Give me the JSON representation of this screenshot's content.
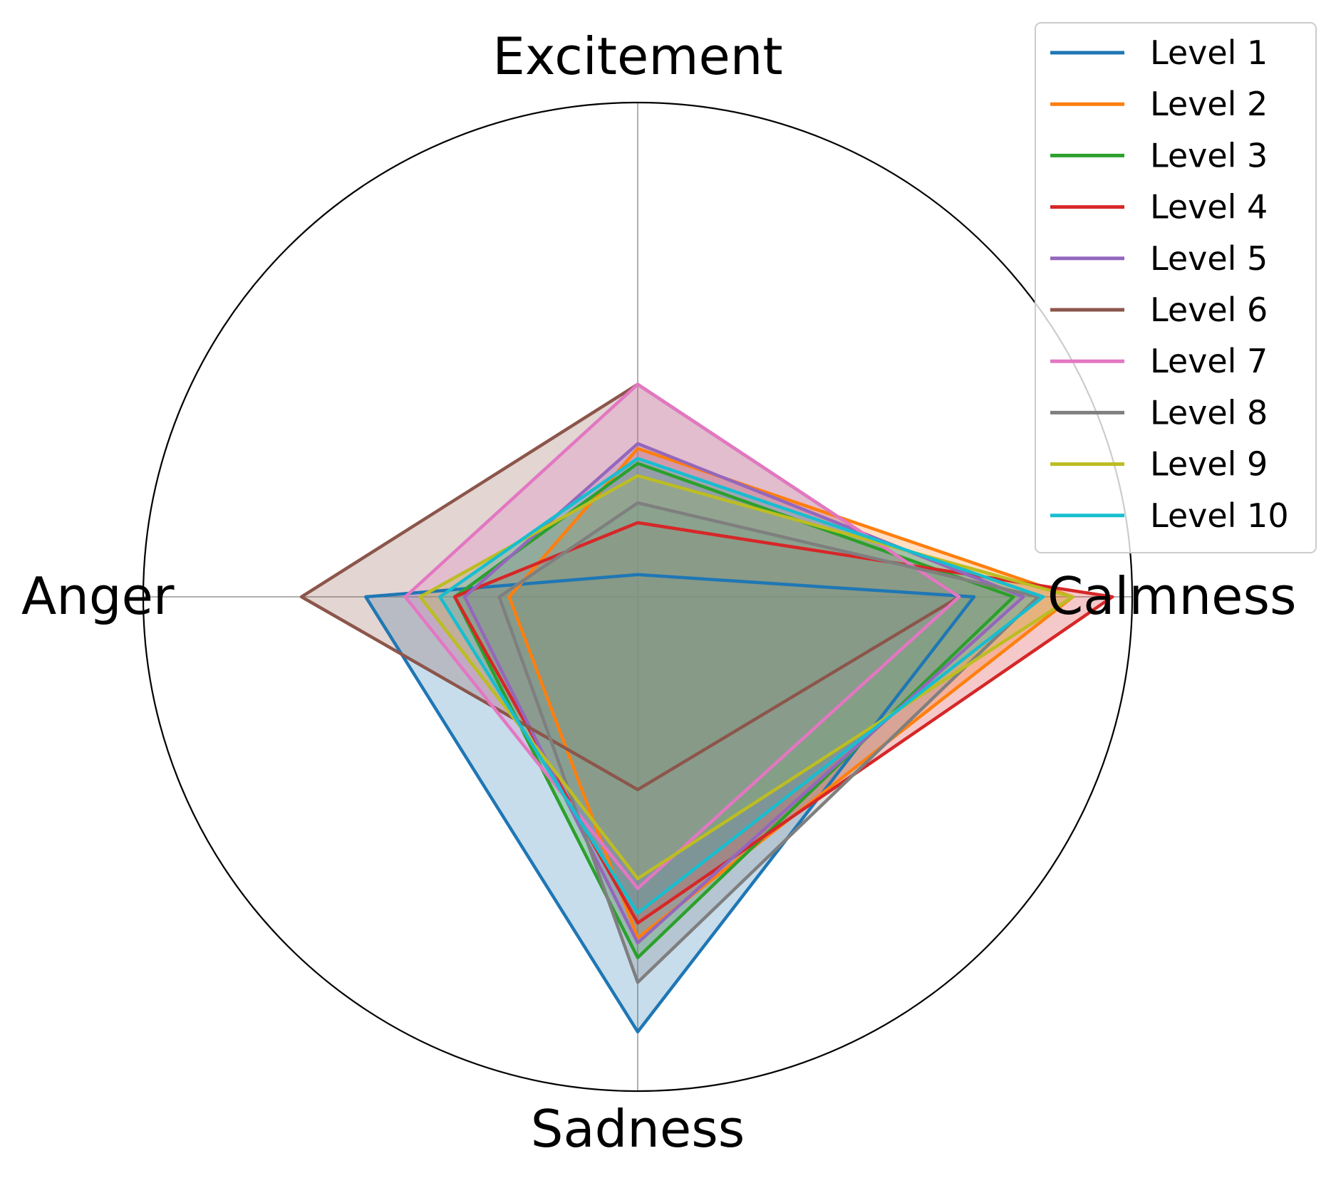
{
  "chart_data": {
    "type": "radar",
    "categories": [
      "Excitement",
      "Calmness",
      "Sadness",
      "Anger"
    ],
    "rlim": [
      0,
      1
    ],
    "grid": true,
    "legend_placement": "top-right",
    "series": [
      {
        "name": "Level 1",
        "color": "#1f77b4",
        "values": [
          0.045,
          0.68,
          0.88,
          0.55
        ]
      },
      {
        "name": "Level 2",
        "color": "#ff7f0e",
        "values": [
          0.3,
          0.88,
          0.69,
          0.26
        ]
      },
      {
        "name": "Level 3",
        "color": "#2ca02c",
        "values": [
          0.27,
          0.76,
          0.73,
          0.37
        ]
      },
      {
        "name": "Level 4",
        "color": "#d62728",
        "values": [
          0.15,
          0.96,
          0.66,
          0.37
        ]
      },
      {
        "name": "Level 5",
        "color": "#9467bd",
        "values": [
          0.31,
          0.78,
          0.7,
          0.35
        ]
      },
      {
        "name": "Level 6",
        "color": "#8c564b",
        "values": [
          0.43,
          0.65,
          0.39,
          0.68
        ]
      },
      {
        "name": "Level 7",
        "color": "#e377c2",
        "values": [
          0.43,
          0.65,
          0.59,
          0.47
        ]
      },
      {
        "name": "Level 8",
        "color": "#7f7f7f",
        "values": [
          0.19,
          0.81,
          0.78,
          0.28
        ]
      },
      {
        "name": "Level 9",
        "color": "#bcbd22",
        "values": [
          0.245,
          0.88,
          0.57,
          0.44
        ]
      },
      {
        "name": "Level 10",
        "color": "#17becf",
        "values": [
          0.28,
          0.82,
          0.64,
          0.4
        ]
      }
    ]
  }
}
